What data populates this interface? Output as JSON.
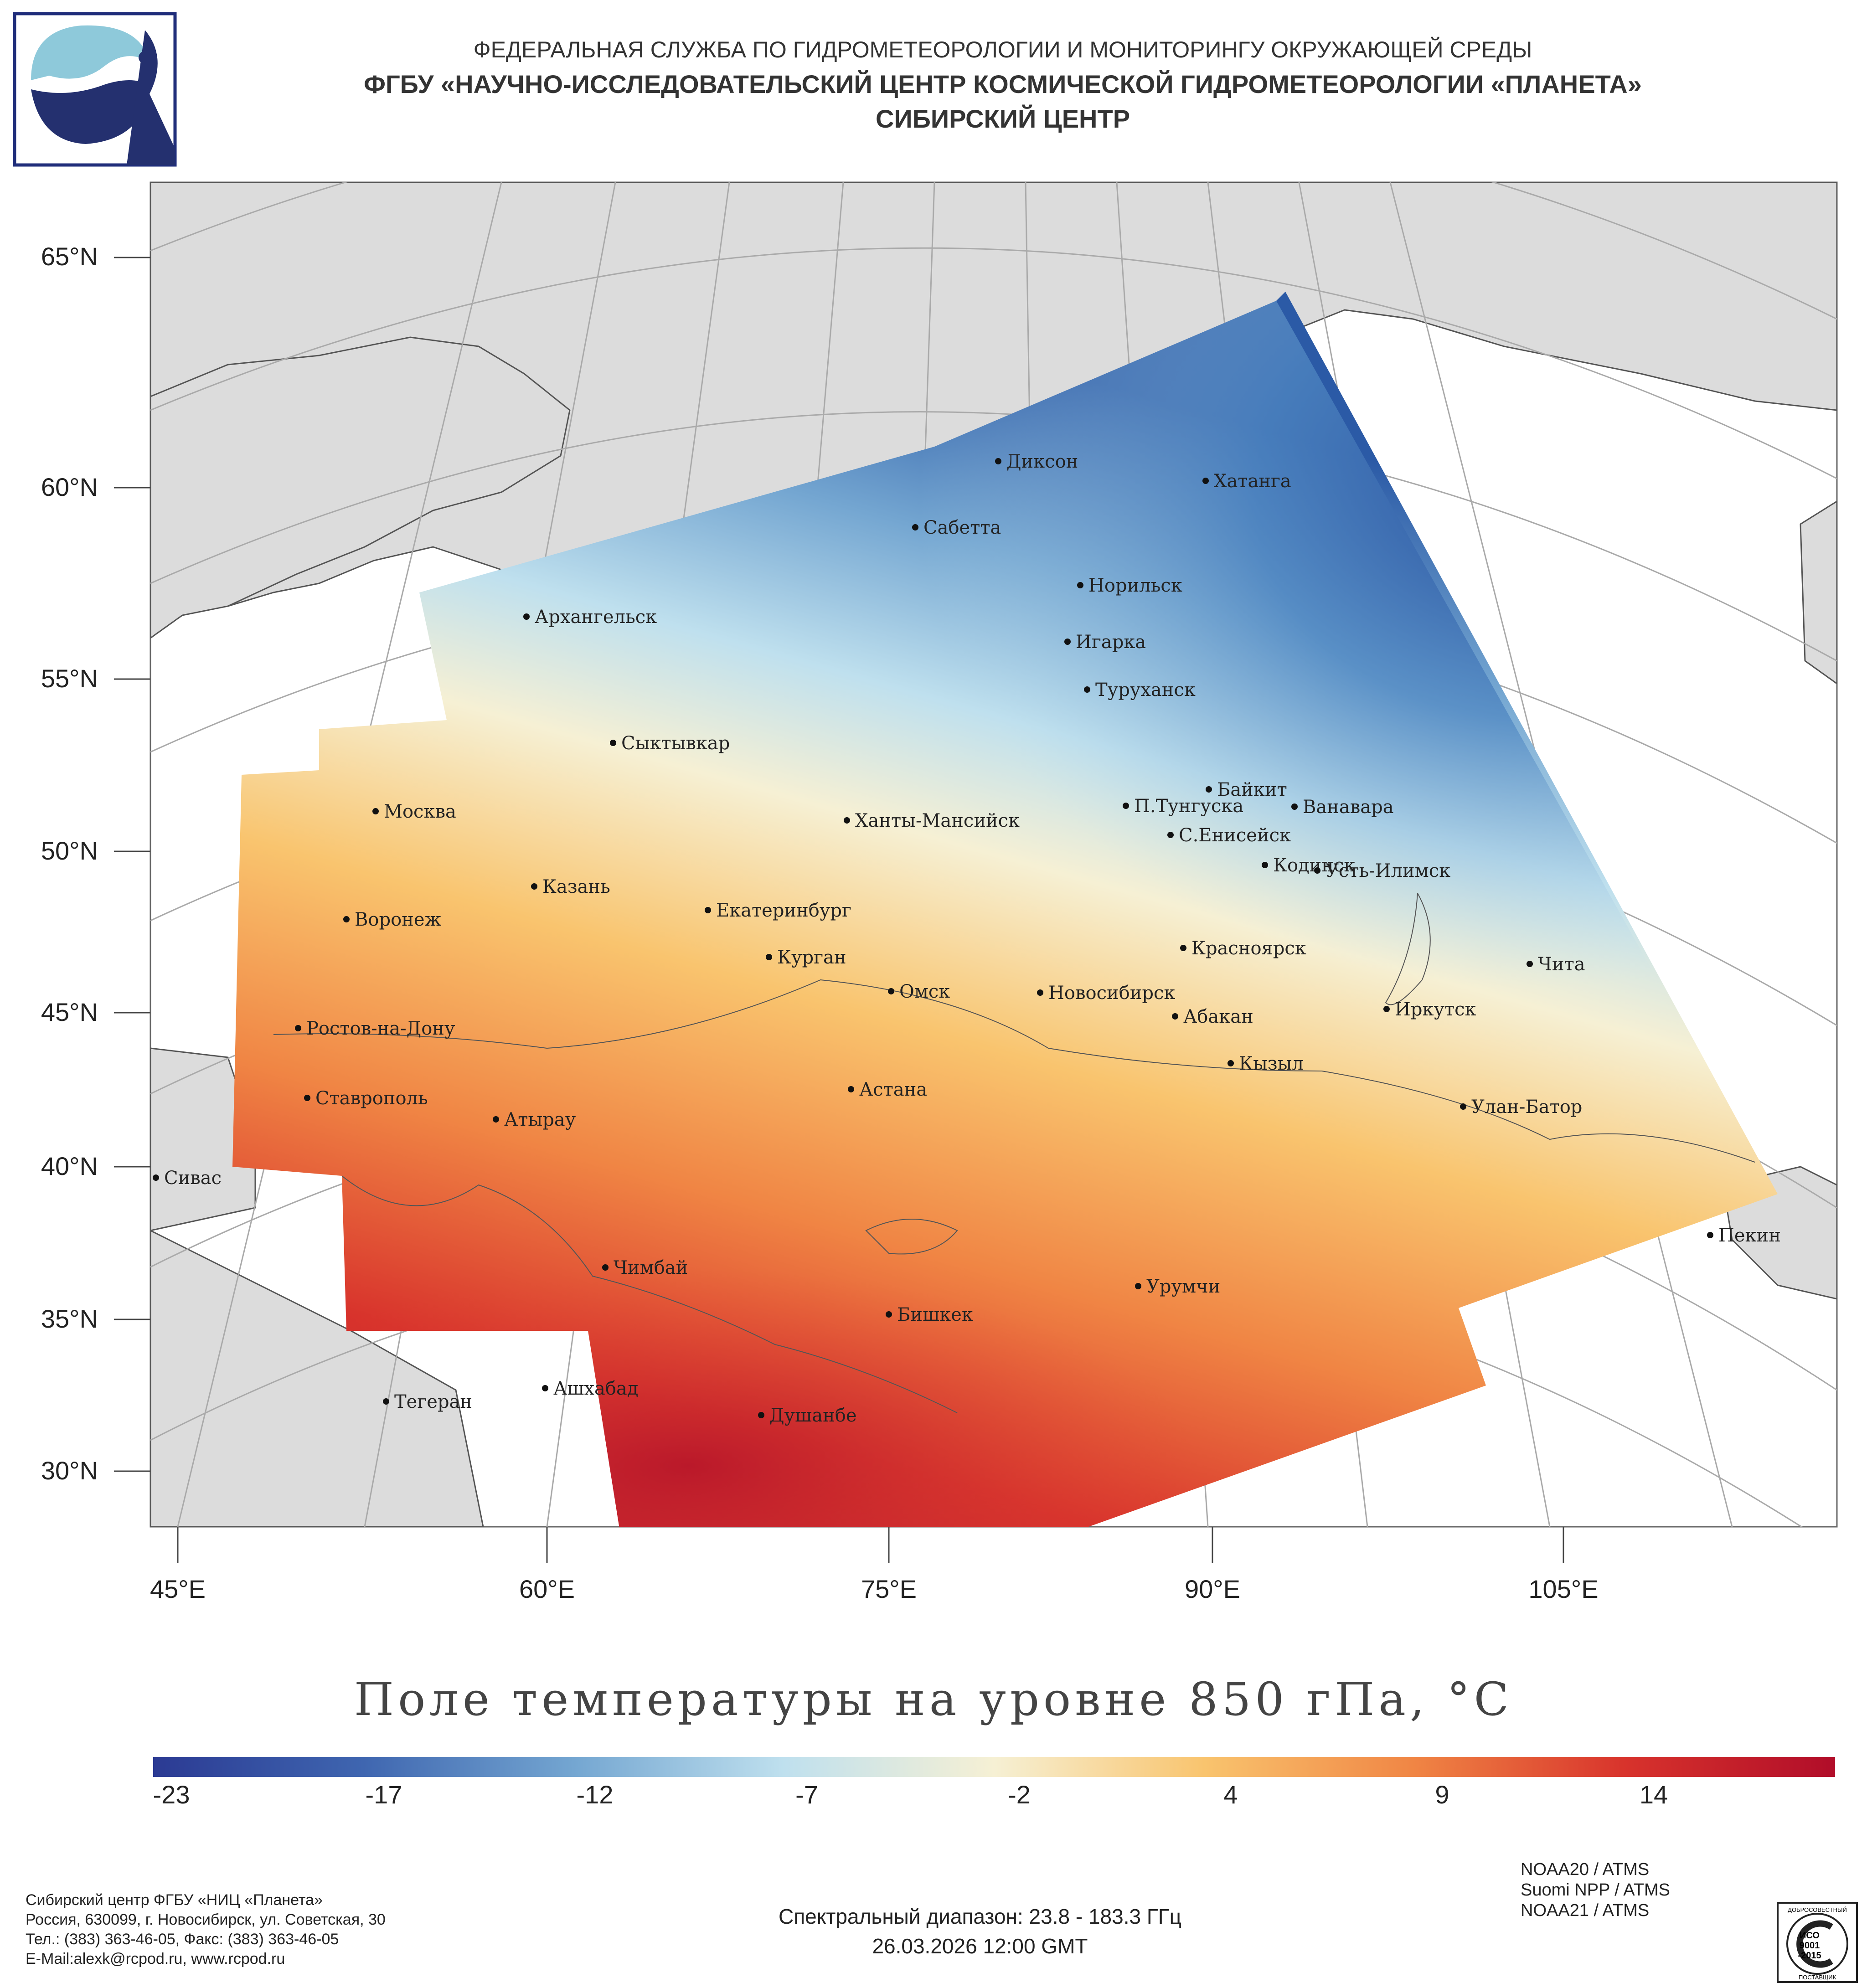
{
  "header": {
    "line1": "ФЕДЕРАЛЬНАЯ СЛУЖБА ПО ГИДРОМЕТЕОРОЛОГИИ И МОНИТОРИНГУ ОКРУЖАЮЩЕЙ СРЕДЫ",
    "line2": "ФГБУ «НАУЧНО-ИССЛЕДОВАТЕЛЬСКИЙ ЦЕНТР КОСМИЧЕСКОЙ ГИДРОМЕТЕОРОЛОГИИ «ПЛАНЕТА»",
    "line3": "СИБИРСКИЙ ЦЕНТР"
  },
  "map": {
    "lat_labels": [
      "65°N",
      "60°N",
      "55°N",
      "50°N",
      "45°N",
      "40°N",
      "35°N",
      "30°N"
    ],
    "lon_labels": [
      "45°E",
      "60°E",
      "75°E",
      "90°E",
      "105°E"
    ],
    "cities": [
      {
        "name": "Диксон"
      },
      {
        "name": "Хатанга"
      },
      {
        "name": "Сабетта"
      },
      {
        "name": "Норильск"
      },
      {
        "name": "Игарка"
      },
      {
        "name": "Архангельск"
      },
      {
        "name": "Туруханск"
      },
      {
        "name": "Сыктывкар"
      },
      {
        "name": "Байкит"
      },
      {
        "name": "Москва"
      },
      {
        "name": "П.Тунгуска"
      },
      {
        "name": "Ванавара"
      },
      {
        "name": "Ханты-Мансийск"
      },
      {
        "name": "С.Енисейск"
      },
      {
        "name": "Кодинск"
      },
      {
        "name": "Усть-Илимск"
      },
      {
        "name": "Казань"
      },
      {
        "name": "Екатеринбург"
      },
      {
        "name": "Воронеж"
      },
      {
        "name": "Красноярск"
      },
      {
        "name": "Курган"
      },
      {
        "name": "Чита"
      },
      {
        "name": "Омск"
      },
      {
        "name": "Новосибирск"
      },
      {
        "name": "Иркутск"
      },
      {
        "name": "Ростов-на-Дону"
      },
      {
        "name": "Абакан"
      },
      {
        "name": "Кызыл"
      },
      {
        "name": "Астана"
      },
      {
        "name": "Ставрополь"
      },
      {
        "name": "Улан-Батор"
      },
      {
        "name": "Атырау"
      },
      {
        "name": "Сивас"
      },
      {
        "name": "Пекин"
      },
      {
        "name": "Чимбай"
      },
      {
        "name": "Урумчи"
      },
      {
        "name": "Бишкек"
      },
      {
        "name": "Ашхабад"
      },
      {
        "name": "Тегеран"
      },
      {
        "name": "Душанбе"
      }
    ]
  },
  "legend": {
    "title": "Поле температуры на уровне 850 гПа, °C",
    "ticks": [
      "-23",
      "-17",
      "-12",
      "-7",
      "-2",
      "4",
      "9",
      "14"
    ],
    "colors": [
      "#2b3a93",
      "#3f66b0",
      "#74a6d1",
      "#bfe0ee",
      "#f6f0d4",
      "#f9c46e",
      "#f08544",
      "#d8332c",
      "#b10d29"
    ]
  },
  "footer": {
    "org_lines": [
      "Сибирский центр ФГБУ «НИЦ «Планета»",
      "Россия, 630099, г. Новосибирск, ул. Советская, 30",
      "Тел.: (383) 363-46-05, Факс: (383) 363-46-05",
      "E-Mail:alexk@rcpod.ru, www.rcpod.ru"
    ],
    "spectral": "Спектральный диапазон: 23.8 - 183.3 ГГц",
    "datetime": "26.03.2026 12:00 GMT",
    "satellites": [
      "NOAA20 / ATMS",
      "Suomi NPP / ATMS",
      "NOAA21 / ATMS"
    ],
    "iso": {
      "top": "ДОБРОСОВЕСТНЫЙ",
      "mid1": "ИСО",
      "mid2": "9001",
      "mid3": "-2015",
      "bottom": "ПОСТАВЩИК"
    }
  }
}
